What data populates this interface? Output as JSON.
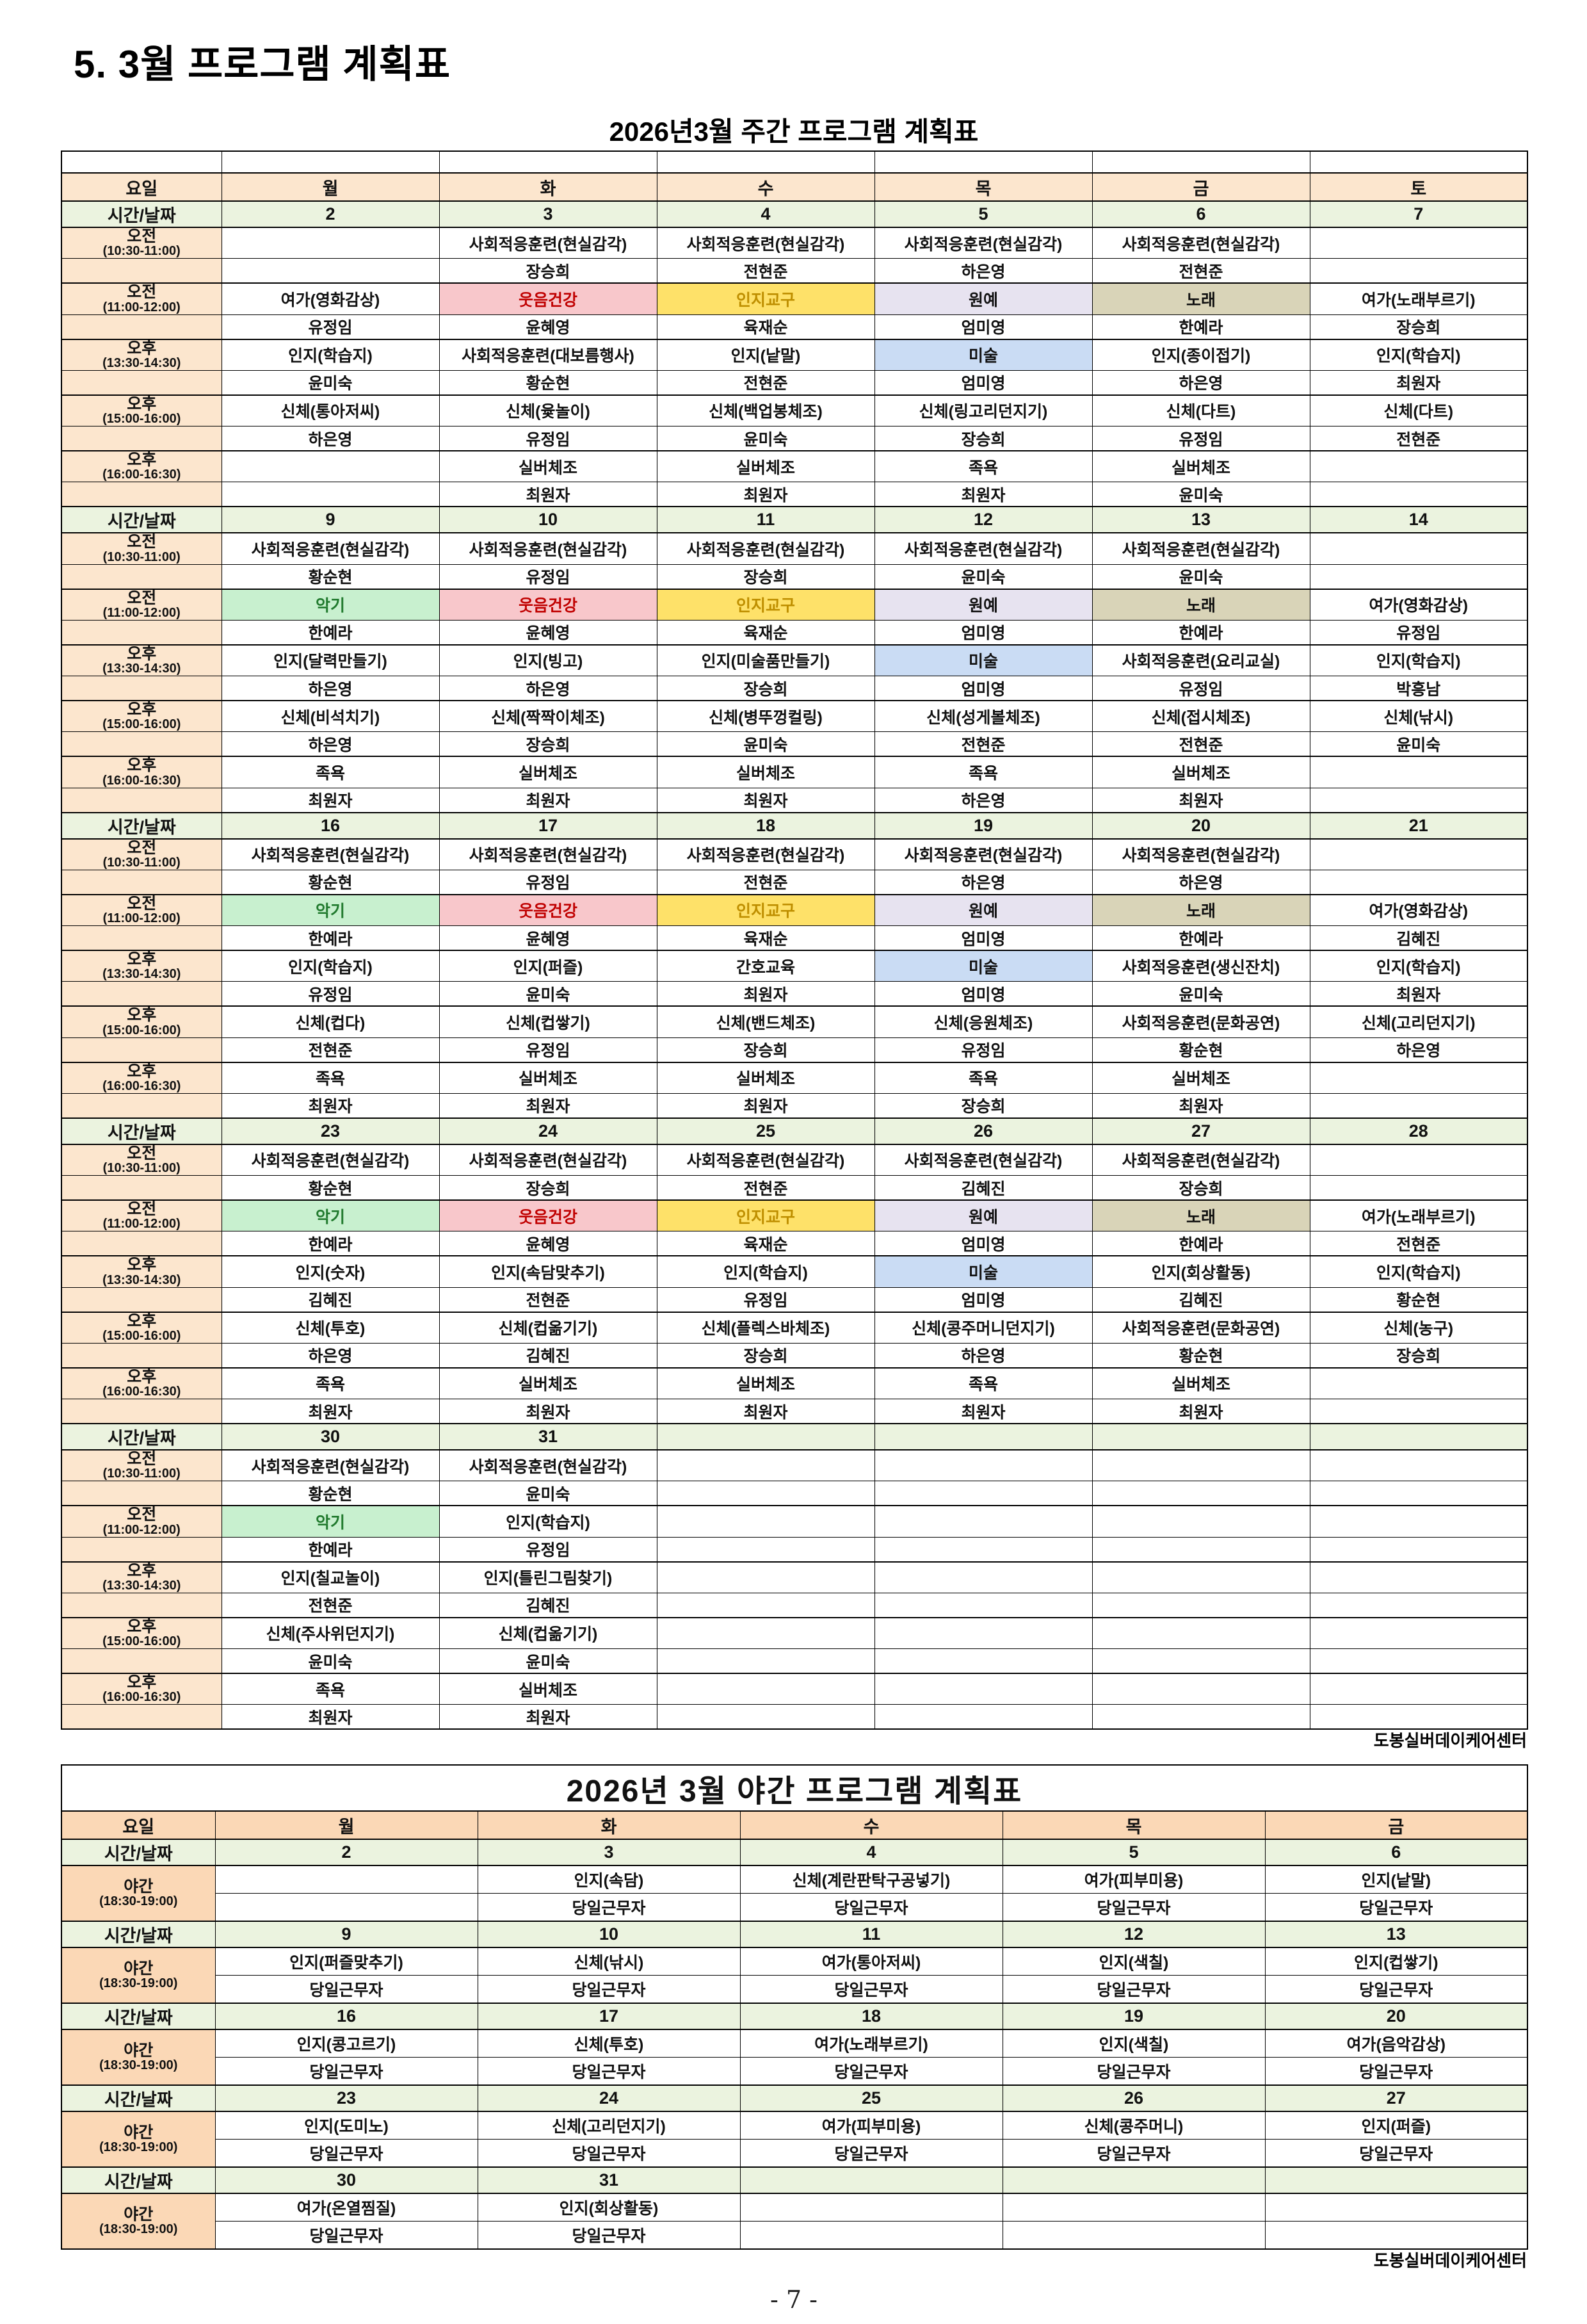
{
  "page": {
    "heading": "5. 3월 프로그램 계획표",
    "page_number": "- 7 -"
  },
  "accent": {
    "saturday_blue": "#1f3cff",
    "holiday_red": "#e53226"
  },
  "special_programs": {
    "악기": {
      "bg": "#c8f0cf",
      "color": "#217a2e"
    },
    "웃음건강": {
      "bg": "#f8c7cb",
      "color": "#c00000"
    },
    "인지교구": {
      "bg": "#fee169",
      "color": "#bf8f00"
    },
    "원예": {
      "bg": "#e7e3f0",
      "color": "#111111"
    },
    "노래": {
      "bg": "#d9d4b8",
      "color": "#111111"
    },
    "미술": {
      "bg": "#cadcf4",
      "color": "#111111"
    }
  },
  "day_table": {
    "title": "2026년3월 주간 프로그램 계획표",
    "footer": "도봉실버데이케어센터",
    "day_header_label": "요일",
    "date_row_label": "시간/날짜",
    "days": [
      "월",
      "화",
      "수",
      "목",
      "금",
      "토"
    ],
    "time_slots": [
      {
        "period": "오전",
        "time": "(10:30-11:00)"
      },
      {
        "period": "오전",
        "time": "(11:00-12:00)"
      },
      {
        "period": "오후",
        "time": "(13:30-14:30)"
      },
      {
        "period": "오후",
        "time": "(15:00-16:00)"
      },
      {
        "period": "오후",
        "time": "(16:00-16:30)"
      }
    ],
    "weeks": [
      {
        "dates": [
          "2",
          "3",
          "4",
          "5",
          "6",
          "7"
        ],
        "slots": [
          {
            "programs": [
              "",
              "사회적응훈련(현실감각)",
              "사회적응훈련(현실감각)",
              "사회적응훈련(현실감각)",
              "사회적응훈련(현실감각)",
              ""
            ],
            "teachers": [
              "",
              "장승희",
              "전현준",
              "하은영",
              "전현준",
              ""
            ]
          },
          {
            "programs": [
              "여가(영화감상)",
              "웃음건강",
              "인지교구",
              "원예",
              "노래",
              "여가(노래부르기)"
            ],
            "teachers": [
              "유정임",
              "윤혜영",
              "육재순",
              "엄미영",
              "한예라",
              "장승희"
            ]
          },
          {
            "programs": [
              "인지(학습지)",
              "사회적응훈련(대보름행사)",
              "인지(낱말)",
              "미술",
              "인지(종이접기)",
              "인지(학습지)"
            ],
            "teachers": [
              "윤미숙",
              "황순현",
              "전현준",
              "엄미영",
              "하은영",
              "최원자"
            ]
          },
          {
            "programs": [
              "신체(통아저씨)",
              "신체(윷놀이)",
              "신체(백업봉체조)",
              "신체(링고리던지기)",
              "신체(다트)",
              "신체(다트)"
            ],
            "teachers": [
              "하은영",
              "유정임",
              "윤미숙",
              "장승희",
              "유정임",
              "전현준"
            ]
          },
          {
            "programs": [
              "",
              "실버체조",
              "실버체조",
              "족욕",
              "실버체조",
              ""
            ],
            "teachers": [
              "",
              "최원자",
              "최원자",
              "최원자",
              "윤미숙",
              ""
            ]
          }
        ]
      },
      {
        "dates": [
          "9",
          "10",
          "11",
          "12",
          "13",
          "14"
        ],
        "slots": [
          {
            "programs": [
              "사회적응훈련(현실감각)",
              "사회적응훈련(현실감각)",
              "사회적응훈련(현실감각)",
              "사회적응훈련(현실감각)",
              "사회적응훈련(현실감각)",
              ""
            ],
            "teachers": [
              "황순현",
              "유정임",
              "장승희",
              "윤미숙",
              "윤미숙",
              ""
            ]
          },
          {
            "programs": [
              "악기",
              "웃음건강",
              "인지교구",
              "원예",
              "노래",
              "여가(영화감상)"
            ],
            "teachers": [
              "한예라",
              "윤혜영",
              "육재순",
              "엄미영",
              "한예라",
              "유정임"
            ]
          },
          {
            "programs": [
              "인지(달력만들기)",
              "인지(빙고)",
              "인지(미술품만들기)",
              "미술",
              "사회적응훈련(요리교실)",
              "인지(학습지)"
            ],
            "teachers": [
              "하은영",
              "하은영",
              "장승희",
              "엄미영",
              "유정임",
              "박흥남"
            ]
          },
          {
            "programs": [
              "신체(비석치기)",
              "신체(짝짝이체조)",
              "신체(병뚜껑컬링)",
              "신체(성게볼체조)",
              "신체(접시체조)",
              "신체(낚시)"
            ],
            "teachers": [
              "하은영",
              "장승희",
              "윤미숙",
              "전현준",
              "전현준",
              "윤미숙"
            ]
          },
          {
            "programs": [
              "족욕",
              "실버체조",
              "실버체조",
              "족욕",
              "실버체조",
              ""
            ],
            "teachers": [
              "최원자",
              "최원자",
              "최원자",
              "하은영",
              "최원자",
              ""
            ]
          }
        ]
      },
      {
        "dates": [
          "16",
          "17",
          "18",
          "19",
          "20",
          "21"
        ],
        "slots": [
          {
            "programs": [
              "사회적응훈련(현실감각)",
              "사회적응훈련(현실감각)",
              "사회적응훈련(현실감각)",
              "사회적응훈련(현실감각)",
              "사회적응훈련(현실감각)",
              ""
            ],
            "teachers": [
              "황순현",
              "유정임",
              "전현준",
              "하은영",
              "하은영",
              ""
            ]
          },
          {
            "programs": [
              "악기",
              "웃음건강",
              "인지교구",
              "원예",
              "노래",
              "여가(영화감상)"
            ],
            "teachers": [
              "한예라",
              "윤혜영",
              "육재순",
              "엄미영",
              "한예라",
              "김혜진"
            ]
          },
          {
            "programs": [
              "인지(학습지)",
              "인지(퍼즐)",
              "간호교육",
              "미술",
              "사회적응훈련(생신잔치)",
              "인지(학습지)"
            ],
            "teachers": [
              "유정임",
              "윤미숙",
              "최원자",
              "엄미영",
              "윤미숙",
              "최원자"
            ]
          },
          {
            "programs": [
              "신체(컵다)",
              "신체(컵쌓기)",
              "신체(밴드체조)",
              "신체(응원체조)",
              "사회적응훈련(문화공연)",
              "신체(고리던지기)"
            ],
            "teachers": [
              "전현준",
              "유정임",
              "장승희",
              "유정임",
              "황순현",
              "하은영"
            ]
          },
          {
            "programs": [
              "족욕",
              "실버체조",
              "실버체조",
              "족욕",
              "실버체조",
              ""
            ],
            "teachers": [
              "최원자",
              "최원자",
              "최원자",
              "장승희",
              "최원자",
              ""
            ]
          }
        ]
      },
      {
        "dates": [
          "23",
          "24",
          "25",
          "26",
          "27",
          "28"
        ],
        "slots": [
          {
            "programs": [
              "사회적응훈련(현실감각)",
              "사회적응훈련(현실감각)",
              "사회적응훈련(현실감각)",
              "사회적응훈련(현실감각)",
              "사회적응훈련(현실감각)",
              ""
            ],
            "teachers": [
              "황순현",
              "장승희",
              "전현준",
              "김혜진",
              "장승희",
              ""
            ]
          },
          {
            "programs": [
              "악기",
              "웃음건강",
              "인지교구",
              "원예",
              "노래",
              "여가(노래부르기)"
            ],
            "teachers": [
              "한예라",
              "윤혜영",
              "육재순",
              "엄미영",
              "한예라",
              "전현준"
            ]
          },
          {
            "programs": [
              "인지(숫자)",
              "인지(속담맞추기)",
              "인지(학습지)",
              "미술",
              "인지(회상활동)",
              "인지(학습지)"
            ],
            "teachers": [
              "김혜진",
              "전현준",
              "유정임",
              "엄미영",
              "김혜진",
              "황순현"
            ]
          },
          {
            "programs": [
              "신체(투호)",
              "신체(컵옮기기)",
              "신체(플렉스바체조)",
              "신체(콩주머니던지기)",
              "사회적응훈련(문화공연)",
              "신체(농구)"
            ],
            "teachers": [
              "하은영",
              "김혜진",
              "장승희",
              "하은영",
              "황순현",
              "장승희"
            ]
          },
          {
            "programs": [
              "족욕",
              "실버체조",
              "실버체조",
              "족욕",
              "실버체조",
              ""
            ],
            "teachers": [
              "최원자",
              "최원자",
              "최원자",
              "최원자",
              "최원자",
              ""
            ]
          }
        ]
      },
      {
        "dates": [
          "30",
          "31",
          "",
          "",
          "",
          ""
        ],
        "slots": [
          {
            "programs": [
              "사회적응훈련(현실감각)",
              "사회적응훈련(현실감각)",
              "",
              "",
              "",
              ""
            ],
            "teachers": [
              "황순현",
              "윤미숙",
              "",
              "",
              "",
              ""
            ]
          },
          {
            "programs": [
              "악기",
              "인지(학습지)",
              "",
              "",
              "",
              ""
            ],
            "teachers": [
              "한예라",
              "유정임",
              "",
              "",
              "",
              ""
            ]
          },
          {
            "programs": [
              "인지(칠교놀이)",
              "인지(틀린그림찾기)",
              "",
              "",
              "",
              ""
            ],
            "teachers": [
              "전현준",
              "김혜진",
              "",
              "",
              "",
              ""
            ]
          },
          {
            "programs": [
              "신체(주사위던지기)",
              "신체(컵옮기기)",
              "",
              "",
              "",
              ""
            ],
            "teachers": [
              "윤미숙",
              "윤미숙",
              "",
              "",
              "",
              ""
            ]
          },
          {
            "programs": [
              "족욕",
              "실버체조",
              "",
              "",
              "",
              ""
            ],
            "teachers": [
              "최원자",
              "최원자",
              "",
              "",
              "",
              ""
            ]
          }
        ]
      }
    ]
  },
  "night_table": {
    "title": "2026년 3월 야간 프로그램 계획표",
    "footer": "도봉실버데이케어센터",
    "day_header_label": "요일",
    "date_row_label": "시간/날짜",
    "days": [
      "월",
      "화",
      "수",
      "목",
      "금"
    ],
    "slot": {
      "period": "야간",
      "time": "(18:30-19:00)"
    },
    "red_date": "2",
    "weeks": [
      {
        "dates": [
          "2",
          "3",
          "4",
          "5",
          "6"
        ],
        "programs": [
          "",
          "인지(속담)",
          "신체(계란판탁구공넣기)",
          "여가(피부미용)",
          "인지(낱말)"
        ],
        "workers": [
          "",
          "당일근무자",
          "당일근무자",
          "당일근무자",
          "당일근무자"
        ]
      },
      {
        "dates": [
          "9",
          "10",
          "11",
          "12",
          "13"
        ],
        "programs": [
          "인지(퍼즐맞추기)",
          "신체(낚시)",
          "여가(통아저씨)",
          "인지(색칠)",
          "인지(컵쌓기)"
        ],
        "workers": [
          "당일근무자",
          "당일근무자",
          "당일근무자",
          "당일근무자",
          "당일근무자"
        ]
      },
      {
        "dates": [
          "16",
          "17",
          "18",
          "19",
          "20"
        ],
        "programs": [
          "인지(콩고르기)",
          "신체(투호)",
          "여가(노래부르기)",
          "인지(색칠)",
          "여가(음악감상)"
        ],
        "workers": [
          "당일근무자",
          "당일근무자",
          "당일근무자",
          "당일근무자",
          "당일근무자"
        ]
      },
      {
        "dates": [
          "23",
          "24",
          "25",
          "26",
          "27"
        ],
        "programs": [
          "인지(도미노)",
          "신체(고리던지기)",
          "여가(피부미용)",
          "신체(콩주머니)",
          "인지(퍼즐)"
        ],
        "workers": [
          "당일근무자",
          "당일근무자",
          "당일근무자",
          "당일근무자",
          "당일근무자"
        ]
      },
      {
        "dates": [
          "30",
          "31",
          "",
          "",
          ""
        ],
        "programs": [
          "여가(온열찜질)",
          "인지(회상활동)",
          "",
          "",
          ""
        ],
        "workers": [
          "당일근무자",
          "당일근무자",
          "",
          "",
          ""
        ]
      }
    ]
  }
}
